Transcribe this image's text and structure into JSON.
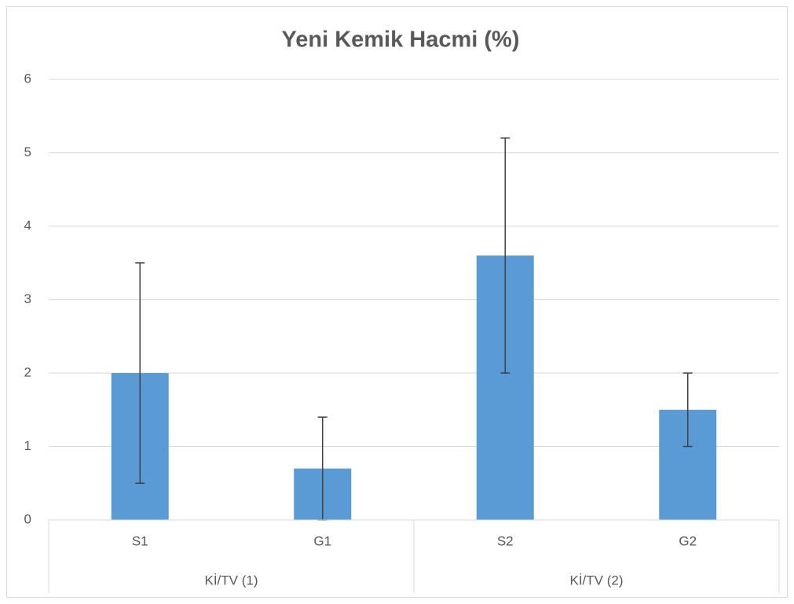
{
  "chart_data": {
    "type": "bar",
    "title": "Yeni Kemik Hacmi (%)",
    "categories": [
      "S1",
      "G1",
      "S2",
      "G2"
    ],
    "category_groups": [
      "Kİ/TV (1)",
      "Kİ/TV (2)"
    ],
    "values": [
      2,
      0.7,
      3.6,
      1.5
    ],
    "errors": [
      1.5,
      0.7,
      1.6,
      0.5
    ],
    "color": "#5b9bd5",
    "ylim": [
      0,
      6
    ],
    "yticks": [
      0,
      1,
      2,
      3,
      4,
      5,
      6
    ],
    "grid": true
  }
}
